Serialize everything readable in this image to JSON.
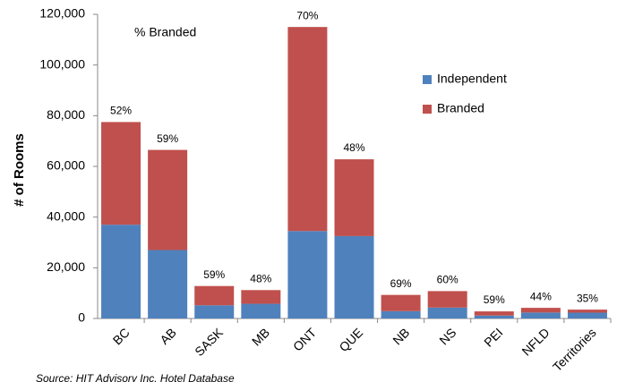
{
  "chart_data": {
    "type": "stacked_bar",
    "annotation": "% Branded",
    "y_axis_label": "# of Rooms",
    "source": "Source: HIT Advisory Inc. Hotel Database",
    "categories": [
      "BC",
      "AB",
      "SASK",
      "MB",
      "ONT",
      "QUE",
      "NB",
      "NS",
      "PEI",
      "NFLD",
      "Territories"
    ],
    "series": [
      {
        "name": "Independent",
        "color": "#4f81bd",
        "values": [
          37000,
          27000,
          5200,
          5800,
          34500,
          32500,
          2900,
          4300,
          1150,
          2350,
          2300
        ]
      },
      {
        "name": "Branded",
        "color": "#c0504d",
        "values": [
          40500,
          39500,
          7600,
          5400,
          80500,
          30300,
          6400,
          6500,
          1650,
          1850,
          1200
        ]
      }
    ],
    "percent_labels": [
      "52%",
      "59%",
      "59%",
      "48%",
      "70%",
      "48%",
      "69%",
      "60%",
      "59%",
      "44%",
      "35%"
    ],
    "ylim": [
      0,
      120000
    ],
    "yticks": [
      0,
      {
        "value": 20000,
        "label": "20,000"
      },
      {
        "value": 40000,
        "label": "40,000"
      },
      {
        "value": 60000,
        "label": "60,000"
      },
      {
        "value": 80000,
        "label": "80,000"
      },
      {
        "value": 100000,
        "label": "100,000"
      },
      {
        "value": 120000,
        "label": "120,000"
      }
    ],
    "grid": false,
    "legend": "right"
  }
}
